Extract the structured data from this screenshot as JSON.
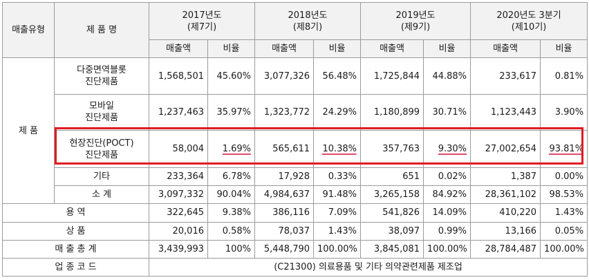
{
  "header": {
    "sales_type": "매출유형",
    "product_name": "제 품 명",
    "years": [
      {
        "year": "2017년도",
        "term": "(제7기)"
      },
      {
        "year": "2018년도",
        "term": "(제8기)"
      },
      {
        "year": "2019년도",
        "term": "(제9기)"
      },
      {
        "year": "2020년도 3분기",
        "term": "(제10기)"
      }
    ],
    "sales_label": "매출액",
    "ratio_label": "비율"
  },
  "product_group_label": "제 품",
  "products": [
    {
      "name_line1": "다중면역블롯",
      "name_line2": "진단제품",
      "values": [
        "1,568,501",
        "45.60%",
        "3,077,326",
        "56.48%",
        "1,725,844",
        "44.88%",
        "233,617",
        "0.81%"
      ]
    },
    {
      "name_line1": "모바일",
      "name_line2": "진단제품",
      "values": [
        "1,237,463",
        "35.97%",
        "1,323,772",
        "24.29%",
        "1,180,899",
        "30.71%",
        "1,123,443",
        "3.90%"
      ]
    },
    {
      "name_line1": "현장진단(POCT)",
      "name_line2": "진단제품",
      "values": [
        "58,004",
        "1.69%",
        "565,611",
        "10.38%",
        "357,763",
        "9.30%",
        "27,002,654",
        "93.81%"
      ]
    },
    {
      "name_line1": "기타",
      "name_line2": "",
      "values": [
        "233,364",
        "6.78%",
        "17,928",
        "0.33%",
        "651",
        "0.02%",
        "1,387",
        "0.00%"
      ]
    },
    {
      "name_line1": "소 계",
      "name_line2": "",
      "values": [
        "3,097,332",
        "90.04%",
        "4,984,637",
        "91.48%",
        "3,265,158",
        "84.92%",
        "28,361,102",
        "98.53%"
      ]
    }
  ],
  "services": {
    "label": "용 역",
    "values": [
      "322,645",
      "9.38%",
      "386,116",
      "7.09%",
      "541,826",
      "14.09%",
      "410,220",
      "1.43%"
    ]
  },
  "goods": {
    "label": "상 품",
    "values": [
      "20,016",
      "0.58%",
      "78,037",
      "1.43%",
      "38,097",
      "0.99%",
      "13,166",
      "0.05%"
    ]
  },
  "total": {
    "label": "매 출 총 계",
    "values": [
      "3,439,993",
      "100%",
      "5,448,790",
      "100.00%",
      "3,845,081",
      "100.00%",
      "28,784,487",
      "100.00%"
    ]
  },
  "industry": {
    "label": "업 종 코 드",
    "value": "(C21300) 의료용품 및 기타 의약관련제품 제조업"
  },
  "colors": {
    "highlight_border": "#e11b22",
    "underline": "#e24a6a",
    "header_bg": "#f2f2f2"
  }
}
